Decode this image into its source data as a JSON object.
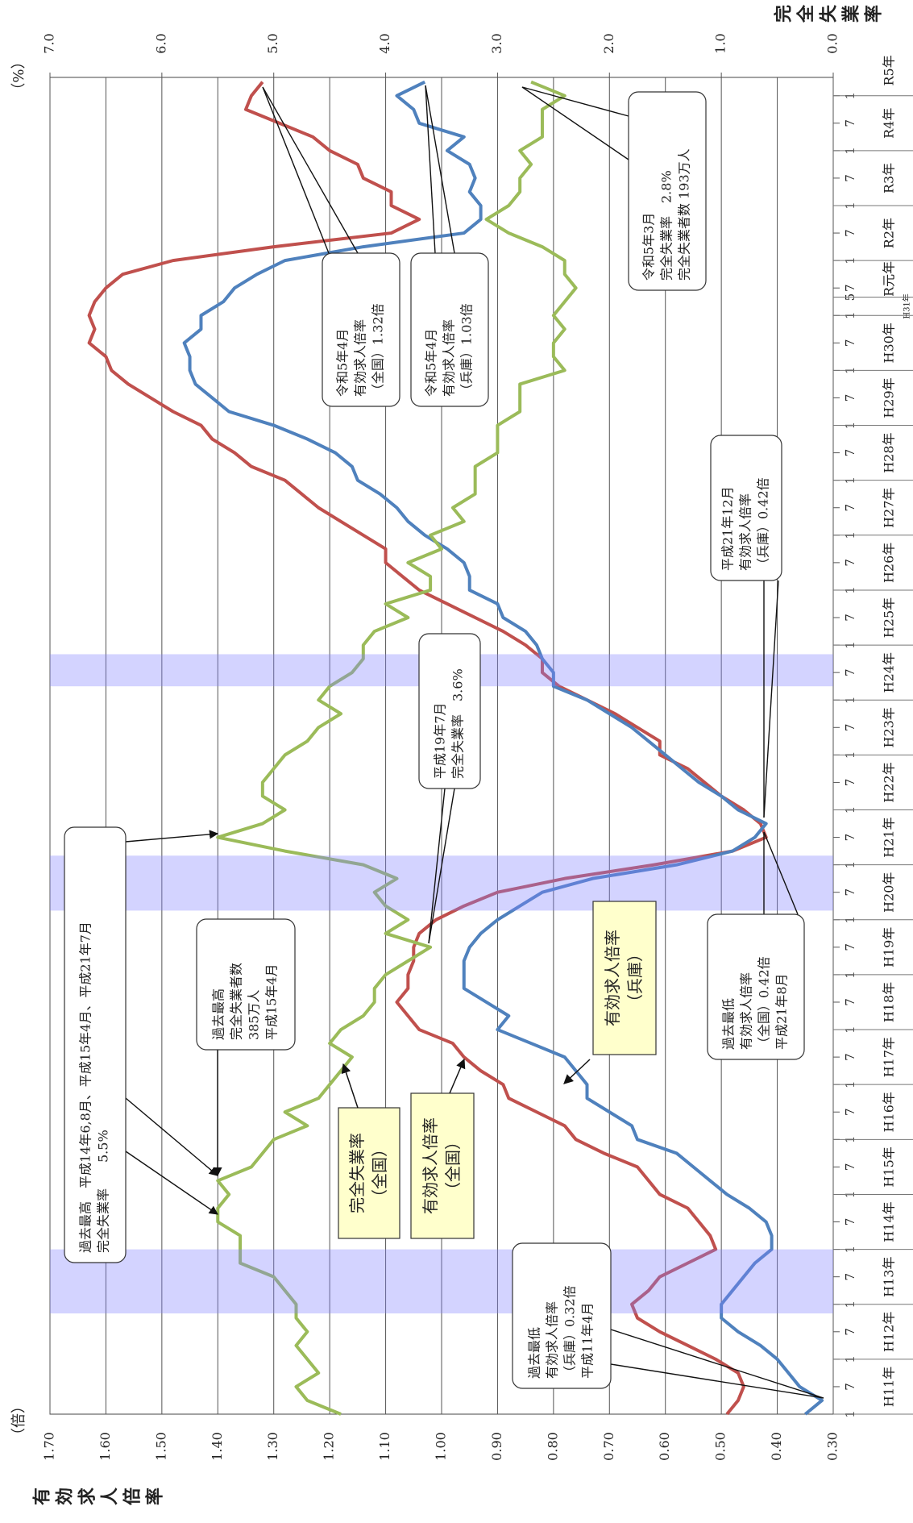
{
  "chart_data": {
    "type": "line",
    "y_label": "有効求人倍率",
    "y_unit": "（倍）",
    "y2_label": "完全失業率",
    "y2_unit": "（%）",
    "ylim": [
      0.3,
      1.7
    ],
    "yticks": [
      {
        "value": 0.3,
        "label": "0.30"
      },
      {
        "value": 0.4,
        "label": "0.40"
      },
      {
        "value": 0.5,
        "label": "0.50"
      },
      {
        "value": 0.6,
        "label": "0.60"
      },
      {
        "value": 0.7,
        "label": "0.70"
      },
      {
        "value": 0.8,
        "label": "0.80"
      },
      {
        "value": 0.9,
        "label": "0.90"
      },
      {
        "value": 1.0,
        "label": "1.00"
      },
      {
        "value": 1.1,
        "label": "1.10"
      },
      {
        "value": 1.2,
        "label": "1.20"
      },
      {
        "value": 1.3,
        "label": "1.30"
      },
      {
        "value": 1.4,
        "label": "1.40"
      },
      {
        "value": 1.5,
        "label": "1.50"
      },
      {
        "value": 1.6,
        "label": "1.60"
      },
      {
        "value": 1.7,
        "label": "1.70"
      }
    ],
    "y2lim": [
      0,
      7
    ],
    "y2ticks": [
      {
        "value": 0,
        "label": "0.0"
      },
      {
        "value": 1,
        "label": "1.0"
      },
      {
        "value": 2,
        "label": "2.0"
      },
      {
        "value": 3,
        "label": "3.0"
      },
      {
        "value": 4,
        "label": "4.0"
      },
      {
        "value": 5,
        "label": "5.0"
      },
      {
        "value": 6,
        "label": "6.0"
      },
      {
        "value": 7,
        "label": "7.0"
      }
    ],
    "grid": true,
    "xticks": [
      {
        "value": "1999-01",
        "label": "1"
      },
      {
        "value": "1999-07",
        "label": "7"
      },
      {
        "value": "2000-01",
        "label": "1"
      },
      {
        "value": "2000-07",
        "label": "7"
      },
      {
        "value": "2001-01",
        "label": "1"
      },
      {
        "value": "2001-07",
        "label": "7"
      },
      {
        "value": "2002-01",
        "label": "1"
      },
      {
        "value": "2002-07",
        "label": "7"
      },
      {
        "value": "2003-01",
        "label": "1"
      },
      {
        "value": "2003-07",
        "label": "7"
      },
      {
        "value": "2004-01",
        "label": "1"
      },
      {
        "value": "2004-07",
        "label": "7"
      },
      {
        "value": "2005-01",
        "label": "1"
      },
      {
        "value": "2005-07",
        "label": "7"
      },
      {
        "value": "2006-01",
        "label": "1"
      },
      {
        "value": "2006-07",
        "label": "7"
      },
      {
        "value": "2007-01",
        "label": "1"
      },
      {
        "value": "2007-07",
        "label": "7"
      },
      {
        "value": "2008-01",
        "label": "1"
      },
      {
        "value": "2008-07",
        "label": "7"
      },
      {
        "value": "2009-01",
        "label": "1"
      },
      {
        "value": "2009-07",
        "label": "7"
      },
      {
        "value": "2010-01",
        "label": "1"
      },
      {
        "value": "2010-07",
        "label": "7"
      },
      {
        "value": "2011-01",
        "label": "1"
      },
      {
        "value": "2011-07",
        "label": "7"
      },
      {
        "value": "2012-01",
        "label": "1"
      },
      {
        "value": "2012-07",
        "label": "7"
      },
      {
        "value": "2013-01",
        "label": "1"
      },
      {
        "value": "2013-07",
        "label": "7"
      },
      {
        "value": "2014-01",
        "label": "1"
      },
      {
        "value": "2014-07",
        "label": "7"
      },
      {
        "value": "2015-01",
        "label": "1"
      },
      {
        "value": "2015-07",
        "label": "7"
      },
      {
        "value": "2016-01",
        "label": "1"
      },
      {
        "value": "2016-07",
        "label": "7"
      },
      {
        "value": "2017-01",
        "label": "1"
      },
      {
        "value": "2017-07",
        "label": "7"
      },
      {
        "value": "2018-01",
        "label": "1"
      },
      {
        "value": "2018-07",
        "label": "7"
      },
      {
        "value": "2019-01",
        "label": "1"
      },
      {
        "value": "2019-05",
        "label": "5"
      },
      {
        "value": "2019-07",
        "label": "7"
      },
      {
        "value": "2020-01",
        "label": "1"
      },
      {
        "value": "2020-07",
        "label": "7"
      },
      {
        "value": "2021-01",
        "label": "1"
      },
      {
        "value": "2021-07",
        "label": "7"
      },
      {
        "value": "2022-01",
        "label": "1"
      },
      {
        "value": "2022-07",
        "label": "7"
      },
      {
        "value": "2023-01",
        "label": "1"
      }
    ],
    "year_labels": [
      {
        "value": "1999-01",
        "label": "H11年"
      },
      {
        "value": "2000-01",
        "label": "H12年"
      },
      {
        "value": "2001-01",
        "label": "H13年"
      },
      {
        "value": "2002-01",
        "label": "H14年"
      },
      {
        "value": "2003-01",
        "label": "H15年"
      },
      {
        "value": "2004-01",
        "label": "H16年"
      },
      {
        "value": "2005-01",
        "label": "H17年"
      },
      {
        "value": "2006-01",
        "label": "H18年"
      },
      {
        "value": "2007-01",
        "label": "H19年"
      },
      {
        "value": "2008-01",
        "label": "H20年"
      },
      {
        "value": "2009-01",
        "label": "H21年"
      },
      {
        "value": "2010-01",
        "label": "H22年"
      },
      {
        "value": "2011-01",
        "label": "H23年"
      },
      {
        "value": "2012-01",
        "label": "H24年"
      },
      {
        "value": "2013-01",
        "label": "H25年"
      },
      {
        "value": "2014-01",
        "label": "H26年"
      },
      {
        "value": "2015-01",
        "label": "H27年"
      },
      {
        "value": "2016-01",
        "label": "H28年"
      },
      {
        "value": "2017-01",
        "label": "H29年"
      },
      {
        "value": "2018-01",
        "label": "H30年"
      },
      {
        "value": "2019-01",
        "label": "H31年"
      },
      {
        "value": "2019-05",
        "label": "R元年"
      },
      {
        "value": "2020-01",
        "label": "R2年"
      },
      {
        "value": "2021-01",
        "label": "R3年"
      },
      {
        "value": "2022-01",
        "label": "R4年"
      },
      {
        "value": "2023-01",
        "label": "R5年"
      }
    ],
    "shaded_periods": [
      [
        "2000-11",
        "2002-01"
      ],
      [
        "2008-03",
        "2009-03"
      ],
      [
        "2012-04",
        "2012-11"
      ]
    ],
    "x": [
      "1999-01",
      "1999-04",
      "1999-07",
      "1999-10",
      "2000-01",
      "2000-04",
      "2000-07",
      "2000-10",
      "2001-01",
      "2001-04",
      "2001-07",
      "2001-10",
      "2002-01",
      "2002-04",
      "2002-07",
      "2002-10",
      "2003-01",
      "2003-04",
      "2003-07",
      "2003-10",
      "2004-01",
      "2004-04",
      "2004-07",
      "2004-10",
      "2005-01",
      "2005-04",
      "2005-07",
      "2005-10",
      "2006-01",
      "2006-04",
      "2006-07",
      "2006-10",
      "2007-01",
      "2007-04",
      "2007-07",
      "2007-10",
      "2008-01",
      "2008-04",
      "2008-07",
      "2008-10",
      "2009-01",
      "2009-04",
      "2009-07",
      "2009-10",
      "2010-01",
      "2010-04",
      "2010-07",
      "2010-10",
      "2011-01",
      "2011-04",
      "2011-07",
      "2011-10",
      "2012-01",
      "2012-04",
      "2012-07",
      "2012-10",
      "2013-01",
      "2013-04",
      "2013-07",
      "2013-10",
      "2014-01",
      "2014-04",
      "2014-07",
      "2014-10",
      "2015-01",
      "2015-04",
      "2015-07",
      "2015-10",
      "2016-01",
      "2016-04",
      "2016-07",
      "2016-10",
      "2017-01",
      "2017-04",
      "2017-07",
      "2017-10",
      "2018-01",
      "2018-04",
      "2018-07",
      "2018-10",
      "2019-01",
      "2019-04",
      "2019-07",
      "2019-10",
      "2020-01",
      "2020-04",
      "2020-07",
      "2020-10",
      "2021-01",
      "2021-04",
      "2021-07",
      "2021-10",
      "2022-01",
      "2022-04",
      "2022-07",
      "2022-10",
      "2023-01",
      "2023-04"
    ],
    "series": [
      {
        "name": "有効求人倍率（全国）",
        "color": "#c0504d",
        "values": [
          0.49,
          0.47,
          0.46,
          0.47,
          0.51,
          0.56,
          0.61,
          0.65,
          0.66,
          0.63,
          0.61,
          0.56,
          0.51,
          0.52,
          0.54,
          0.56,
          0.61,
          0.63,
          0.65,
          0.71,
          0.76,
          0.78,
          0.83,
          0.88,
          0.89,
          0.93,
          0.96,
          0.98,
          1.04,
          1.06,
          1.08,
          1.06,
          1.06,
          1.05,
          1.05,
          1.04,
          1.01,
          0.96,
          0.9,
          0.78,
          0.62,
          0.48,
          0.42,
          0.43,
          0.46,
          0.5,
          0.53,
          0.56,
          0.61,
          0.61,
          0.65,
          0.69,
          0.74,
          0.79,
          0.82,
          0.82,
          0.85,
          0.89,
          0.94,
          0.99,
          1.04,
          1.07,
          1.1,
          1.1,
          1.14,
          1.18,
          1.22,
          1.25,
          1.28,
          1.34,
          1.37,
          1.41,
          1.43,
          1.48,
          1.52,
          1.56,
          1.59,
          1.6,
          1.63,
          1.62,
          1.63,
          1.62,
          1.6,
          1.57,
          1.48,
          1.3,
          1.09,
          1.04,
          1.09,
          1.09,
          1.14,
          1.15,
          1.2,
          1.23,
          1.29,
          1.35,
          1.34,
          1.32
        ]
      },
      {
        "name": "有効求人倍率（兵庫）",
        "color": "#4f81bd",
        "values": [
          0.35,
          0.32,
          0.36,
          0.38,
          0.4,
          0.43,
          0.47,
          0.5,
          0.5,
          0.48,
          0.46,
          0.44,
          0.41,
          0.41,
          0.42,
          0.45,
          0.49,
          0.52,
          0.55,
          0.58,
          0.65,
          0.66,
          0.7,
          0.74,
          0.74,
          0.76,
          0.78,
          0.84,
          0.9,
          0.88,
          0.92,
          0.96,
          0.96,
          0.96,
          0.95,
          0.93,
          0.9,
          0.86,
          0.82,
          0.73,
          0.58,
          0.48,
          0.44,
          0.42,
          0.47,
          0.5,
          0.54,
          0.57,
          0.6,
          0.63,
          0.66,
          0.7,
          0.74,
          0.8,
          0.8,
          0.82,
          0.83,
          0.85,
          0.89,
          0.9,
          0.95,
          0.95,
          0.96,
          0.99,
          1.03,
          1.06,
          1.08,
          1.11,
          1.15,
          1.16,
          1.19,
          1.24,
          1.3,
          1.38,
          1.41,
          1.44,
          1.45,
          1.45,
          1.46,
          1.43,
          1.43,
          1.39,
          1.37,
          1.33,
          1.28,
          1.14,
          0.96,
          0.93,
          0.93,
          0.95,
          0.94,
          0.95,
          0.99,
          0.96,
          1.04,
          1.05,
          1.08,
          1.03
        ]
      },
      {
        "name": "完全失業率（全国）",
        "color": "#9bbb59",
        "axis": "y2",
        "values": [
          4.4,
          4.7,
          4.8,
          4.6,
          4.7,
          4.8,
          4.7,
          4.8,
          4.8,
          4.9,
          5.0,
          5.3,
          5.3,
          5.3,
          5.5,
          5.5,
          5.4,
          5.5,
          5.2,
          5.1,
          5.0,
          4.7,
          4.9,
          4.6,
          4.5,
          4.4,
          4.3,
          4.5,
          4.4,
          4.2,
          4.1,
          4.1,
          4.0,
          3.8,
          3.6,
          4.0,
          3.8,
          4.0,
          4.1,
          3.9,
          4.2,
          4.9,
          5.5,
          5.1,
          4.9,
          5.1,
          5.1,
          5.0,
          4.9,
          4.7,
          4.6,
          4.4,
          4.6,
          4.5,
          4.3,
          4.2,
          4.2,
          4.1,
          3.8,
          4.0,
          3.6,
          3.6,
          3.8,
          3.5,
          3.6,
          3.3,
          3.4,
          3.2,
          3.2,
          3.2,
          3.0,
          3.0,
          3.0,
          2.8,
          2.8,
          2.8,
          2.4,
          2.5,
          2.5,
          2.4,
          2.5,
          2.4,
          2.3,
          2.4,
          2.4,
          2.6,
          2.9,
          3.1,
          2.9,
          2.8,
          2.8,
          2.7,
          2.8,
          2.6,
          2.6,
          2.6,
          2.4,
          2.7
        ]
      }
    ],
    "annotations": [
      {
        "lines": [
          "令和5年3月",
          "完全失業率　2.8%",
          "完全失業者数 193万人"
        ]
      },
      {
        "lines": [
          "令和5年4月",
          "有効求人倍率",
          "（全国）1.32倍"
        ]
      },
      {
        "lines": [
          "令和5年4月",
          "有効求人倍率",
          "（兵庫）1.03倍"
        ]
      },
      {
        "lines": [
          "平成21年12月",
          "有効求人倍率",
          "（兵庫）0.42倍"
        ]
      },
      {
        "lines": [
          "平成19年7月",
          "完全失業率　3.6%"
        ]
      },
      {
        "lines": [
          "過去最低",
          "有効求人倍率",
          "（全国）0.42倍",
          "平成21年8月"
        ]
      },
      {
        "lines": [
          "過去最高",
          "完全失業者数",
          "385万人",
          "平成15年4月"
        ]
      },
      {
        "lines": [
          "過去最高　平成14年6,8月、平成15年4月、平成21年7月",
          "完全失業率　　5.5%"
        ]
      },
      {
        "lines": [
          "過去最低",
          "有効求人倍率",
          "（兵庫）0.32倍",
          "平成11年4月"
        ]
      }
    ]
  }
}
